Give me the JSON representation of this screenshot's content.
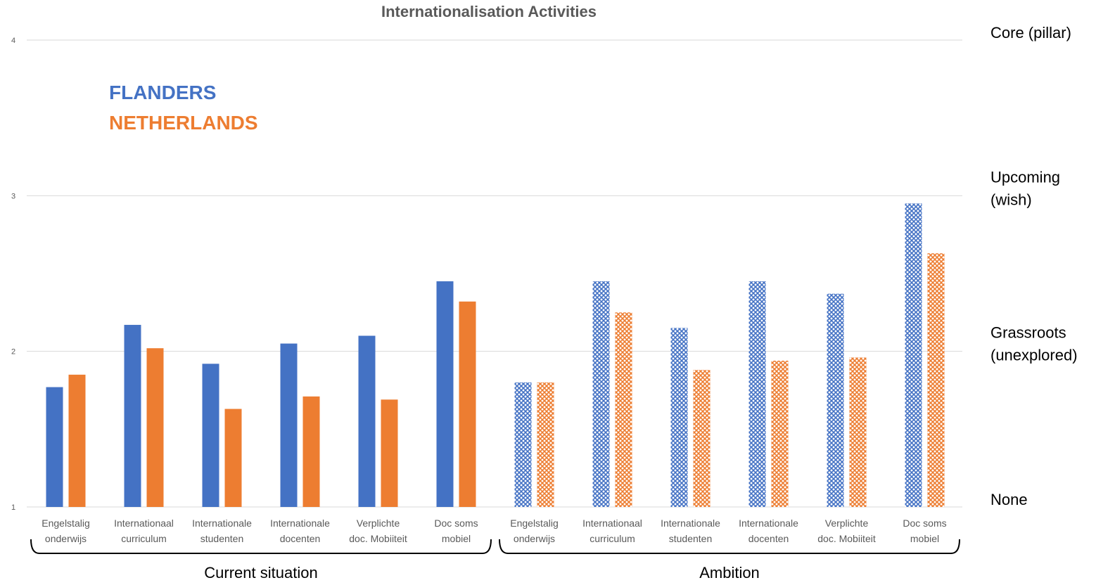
{
  "colors": {
    "flanders": "#4472c4",
    "netherlands": "#ed7d31",
    "grid": "#d9d9d9",
    "text": "#595959"
  },
  "chart_data": {
    "type": "bar",
    "title": "Internationalisation Activities",
    "ylim": [
      1,
      4
    ],
    "yticks": [
      1,
      2,
      3,
      4
    ],
    "grid": true,
    "legend_position": "top-left",
    "categories": [
      [
        "Engelstalig",
        "onderwijs"
      ],
      [
        "Internationaal",
        "curriculum"
      ],
      [
        "Internationale",
        "studenten"
      ],
      [
        "Internationale",
        "docenten"
      ],
      [
        "Verplichte",
        "doc. Mobiiteit"
      ],
      [
        "Doc soms",
        "mobiel"
      ],
      [
        "Engelstalig",
        "onderwijs"
      ],
      [
        "Internationaal",
        "curriculum"
      ],
      [
        "Internationale",
        "studenten"
      ],
      [
        "Internationale",
        "docenten"
      ],
      [
        "Verplichte",
        "doc. Mobiiteit"
      ],
      [
        "Doc soms",
        "mobiel"
      ]
    ],
    "series": [
      {
        "name": "FLANDERS",
        "values": [
          1.77,
          2.17,
          1.92,
          2.05,
          2.1,
          2.45,
          1.8,
          2.45,
          2.15,
          2.45,
          2.37,
          2.95
        ]
      },
      {
        "name": "NETHERLANDS",
        "values": [
          1.85,
          2.02,
          1.63,
          1.71,
          1.69,
          2.32,
          1.8,
          2.25,
          1.88,
          1.94,
          1.96,
          2.63
        ]
      }
    ],
    "groups": [
      {
        "label": "Current situation",
        "pattern": "solid"
      },
      {
        "label": "Ambition",
        "pattern": "crosshatch"
      }
    ],
    "level_labels": [
      {
        "value": 4,
        "lines": [
          "Core (pillar)"
        ]
      },
      {
        "value": 3,
        "lines": [
          "Upcoming",
          "(wish)"
        ]
      },
      {
        "value": 2,
        "lines": [
          "Grassroots",
          "(unexplored)"
        ]
      },
      {
        "value": 1,
        "lines": [
          "None"
        ]
      }
    ]
  }
}
